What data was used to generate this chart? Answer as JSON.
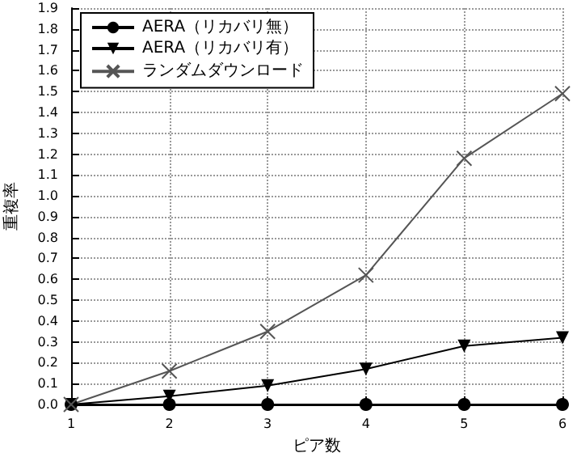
{
  "chart_data": {
    "type": "line",
    "xlabel": "ピア数",
    "ylabel": "重複率",
    "x": [
      1,
      2,
      3,
      4,
      5,
      6
    ],
    "xlim": [
      1,
      6
    ],
    "xticks": [
      1,
      2,
      3,
      4,
      5,
      6
    ],
    "ylim": [
      0,
      1.9
    ],
    "yticks": [
      {
        "value": 0,
        "label": "0.0"
      },
      0.1,
      0.2,
      0.3,
      0.4,
      0.5,
      0.6,
      0.7,
      0.8,
      0.9,
      {
        "value": 1,
        "label": "1.0"
      },
      1.1,
      1.2,
      1.3,
      1.4,
      1.5,
      1.6,
      1.7,
      1.8,
      1.9
    ],
    "grid": true,
    "legend": "top left",
    "line_style": "solid",
    "series": [
      {
        "name": "AERA（リカバリ無）",
        "color": "#000000",
        "marker": "circle",
        "values": [
          0,
          0,
          0,
          0,
          0,
          0
        ]
      },
      {
        "name": "AERA（リカバリ有）",
        "color": "#000000",
        "marker": "triangle",
        "values": [
          0,
          0.04,
          0.09,
          0.17,
          0.28,
          0.32
        ]
      },
      {
        "name": "ランダムダウンロード",
        "color": "#555555",
        "marker": "cross",
        "values": [
          0,
          0.16,
          0.35,
          0.62,
          1.18,
          1.49
        ]
      }
    ]
  }
}
